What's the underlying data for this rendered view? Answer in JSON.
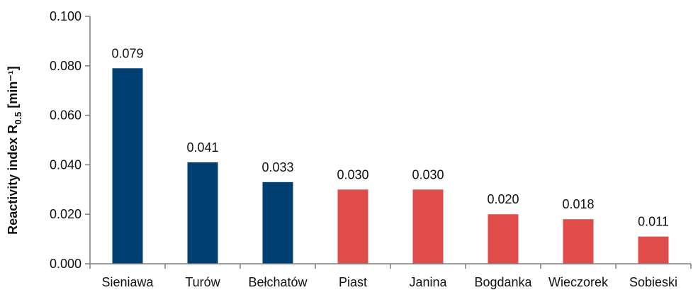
{
  "chart_data": {
    "type": "bar",
    "categories": [
      "Sieniawa",
      "Turów",
      "Bełchatów",
      "Piast",
      "Janina",
      "Bogdanka",
      "Wieczorek",
      "Sobieski"
    ],
    "values": [
      0.079,
      0.041,
      0.033,
      0.03,
      0.03,
      0.02,
      0.018,
      0.011
    ],
    "data_labels": [
      "0.079",
      "0.041",
      "0.033",
      "0.030",
      "0.030",
      "0.020",
      "0.018",
      "0.011"
    ],
    "bar_colors": [
      "#003f72",
      "#003f72",
      "#003f72",
      "#e04c4a",
      "#e04c4a",
      "#e04c4a",
      "#e04c4a",
      "#e04c4a"
    ],
    "ylabel": {
      "main": "Reactivity index  R",
      "sub": "0.5",
      "unit": " [min⁻¹]"
    },
    "ylim": [
      0,
      0.1
    ],
    "yticks": [
      "0.000",
      "0.020",
      "0.040",
      "0.060",
      "0.080",
      "0.100"
    ],
    "grid": false,
    "axis_color": "#7f7f7f"
  }
}
